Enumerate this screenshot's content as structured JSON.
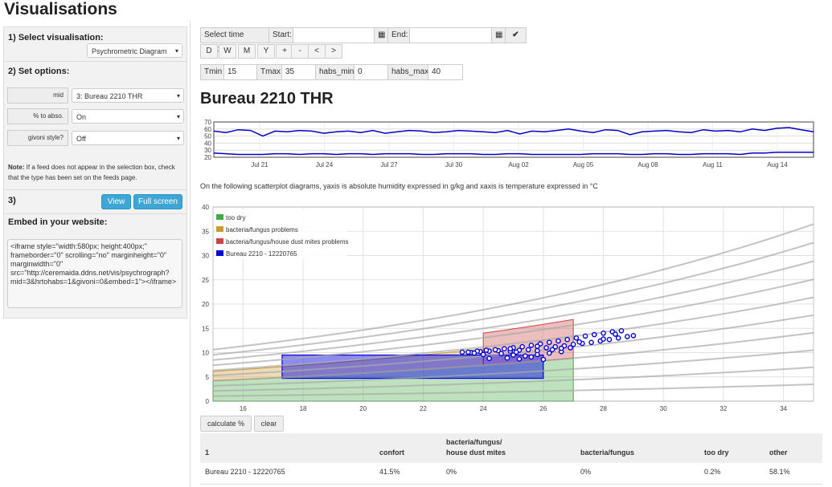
{
  "page_title": "Visualisations",
  "sidebar": {
    "section1": "1) Select visualisation:",
    "visualisation_select": "Psychrometric Diagram",
    "section2": "2) Set options:",
    "options": [
      {
        "label": "mid",
        "value": "3: Bureau 2210 THR"
      },
      {
        "label": "% to abso.",
        "value": "On"
      },
      {
        "label": "givoni style?",
        "value": "Off"
      }
    ],
    "note_bold": "Note:",
    "note_text": " If a feed does not appear in the selection box, check that the type has been set on the feeds page.",
    "section3": "3)",
    "view_label": "View",
    "fullscreen_label": "Full screen",
    "embed_heading": "Embed in your website:",
    "embed_code": "<iframe style=\"width:580px; height:400px;\" frameborder=\"0\" scrolling=\"no\" marginheight=\"0\" marginwidth=\"0\" src=\"http://ceremaida.ddns.net/vis/psychrograph?mid=3&hrtohabs=1&givoni=0&embed=1\"></iframe>"
  },
  "toolbar": {
    "time_window": "Select time window",
    "start_label": "Start:",
    "start_value": "",
    "end_label": "End:",
    "end_value": "",
    "calendar_icon": "calendar-icon",
    "confirm_icon": "checkmark-icon",
    "range_buttons": [
      "D",
      "W",
      "M",
      "Y",
      "+",
      "-",
      "<",
      ">"
    ],
    "params": [
      {
        "label": "Tmin",
        "value": "15"
      },
      {
        "label": "Tmax",
        "value": "35"
      },
      {
        "label": "habs_min",
        "value": "0"
      },
      {
        "label": "habs_max",
        "value": "40"
      }
    ]
  },
  "heading": "Bureau 2210 THR",
  "description": "On the following scatterplot diagrams, yaxis is absolute humidity expressed in g/kg and xaxis is temperature expressed in °C",
  "chart_data": [
    {
      "type": "line",
      "y_ticks": [
        20,
        30,
        40,
        50,
        60,
        70
      ],
      "ylim": [
        20,
        70
      ],
      "x_tick_labels": [
        "Jul 21",
        "Jul 24",
        "Jul 27",
        "Jul 30",
        "Aug 02",
        "Aug 05",
        "Aug 08",
        "Aug 11",
        "Aug 14"
      ],
      "series": [
        {
          "color": "#0000cc",
          "values": [
            57,
            55,
            59,
            58,
            50,
            57,
            56,
            58,
            57,
            54,
            56,
            57,
            55,
            58,
            54,
            56,
            58,
            57,
            55,
            56,
            58,
            57,
            56,
            55,
            58,
            53,
            57,
            56,
            58,
            60,
            57,
            55,
            59,
            58,
            52,
            56,
            57,
            58,
            56,
            55,
            59,
            57,
            58,
            56,
            60,
            58,
            61,
            62,
            59,
            56
          ]
        },
        {
          "color": "#0000cc",
          "values": [
            26,
            25,
            24,
            24,
            24,
            25,
            25,
            24,
            25,
            25,
            24,
            25,
            25,
            24,
            25,
            25,
            25,
            24,
            24,
            25,
            25,
            25,
            24,
            24,
            25,
            25,
            24,
            24,
            24,
            24,
            24,
            25,
            25,
            25,
            24,
            24,
            25,
            25,
            24,
            24,
            25,
            25,
            25,
            24,
            26,
            26,
            27,
            27,
            27,
            27
          ]
        }
      ]
    },
    {
      "type": "scatter",
      "xlim": [
        15,
        35
      ],
      "ylim": [
        0,
        40
      ],
      "x_ticks": [
        16,
        18,
        20,
        22,
        24,
        26,
        28,
        30,
        32,
        34
      ],
      "y_ticks": [
        0,
        5,
        10,
        15,
        20,
        25,
        30,
        35,
        40
      ],
      "legend": [
        {
          "name": "too dry",
          "color": "#44aa44"
        },
        {
          "name": "bacteria/fungus problems",
          "color": "#cc9933"
        },
        {
          "name": "bacteria/fungus/house dust mites problems",
          "color": "#cc4444"
        },
        {
          "name": "Bureau 2210 - 12220765",
          "color": "#0000dd"
        }
      ],
      "legend_position": "top-left",
      "rh_curves": [
        0.1,
        0.2,
        0.3,
        0.4,
        0.5,
        0.6,
        0.7,
        0.8,
        0.9,
        1.0
      ],
      "points": [
        [
          23.3,
          10.1
        ],
        [
          23.6,
          10.0
        ],
        [
          23.9,
          10.2
        ],
        [
          24.2,
          10.3
        ],
        [
          24.5,
          10.4
        ],
        [
          24.9,
          10.3
        ],
        [
          25.2,
          10.5
        ],
        [
          25.5,
          10.6
        ],
        [
          25.8,
          10.4
        ],
        [
          26.1,
          11.0
        ],
        [
          26.4,
          11.2
        ],
        [
          26.7,
          11.4
        ],
        [
          27.0,
          11.7
        ],
        [
          27.3,
          11.9
        ],
        [
          27.6,
          12.1
        ],
        [
          27.9,
          12.4
        ],
        [
          28.2,
          12.7
        ],
        [
          28.5,
          13.0
        ],
        [
          28.8,
          13.3
        ],
        [
          29.0,
          13.5
        ],
        [
          28.6,
          14.5
        ],
        [
          28.3,
          14.3
        ],
        [
          28.0,
          14.0
        ],
        [
          27.7,
          13.7
        ],
        [
          27.4,
          13.4
        ],
        [
          27.1,
          13.0
        ],
        [
          26.8,
          12.7
        ],
        [
          26.5,
          12.4
        ],
        [
          26.2,
          12.1
        ],
        [
          25.9,
          11.8
        ],
        [
          25.6,
          11.5
        ],
        [
          25.3,
          11.2
        ],
        [
          25.0,
          11.0
        ],
        [
          24.7,
          10.8
        ],
        [
          24.4,
          10.6
        ],
        [
          24.1,
          10.5
        ],
        [
          23.8,
          10.3
        ],
        [
          23.5,
          10.1
        ],
        [
          24.6,
          9.8
        ],
        [
          25.0,
          9.5
        ],
        [
          25.4,
          9.3
        ],
        [
          25.8,
          9.6
        ],
        [
          26.2,
          9.9
        ],
        [
          26.6,
          10.2
        ],
        [
          24.8,
          8.9
        ],
        [
          25.2,
          8.7
        ],
        [
          24.2,
          8.8
        ],
        [
          25.6,
          9.1
        ],
        [
          26.0,
          8.6
        ],
        [
          24.9,
          10.8
        ],
        [
          25.8,
          11.3
        ],
        [
          26.6,
          10.9
        ],
        [
          27.2,
          12.2
        ],
        [
          28.0,
          12.8
        ],
        [
          28.4,
          13.8
        ],
        [
          26.9,
          11.0
        ],
        [
          25.1,
          10.1
        ],
        [
          24.0,
          9.6
        ],
        [
          23.7,
          9.9
        ],
        [
          26.3,
          10.6
        ]
      ]
    }
  ],
  "actions": {
    "calculate": "calculate %",
    "clear": "clear"
  },
  "results_table": {
    "headers": [
      "1",
      "confort",
      "bacteria/fungus/\nhouse dust mites",
      "bacteria/fungus",
      "too dry",
      "other"
    ],
    "rows": [
      [
        "Bureau 2210 - 12220765",
        "41.5%",
        "0%",
        "0%",
        "0.2%",
        "58.1%"
      ]
    ]
  }
}
